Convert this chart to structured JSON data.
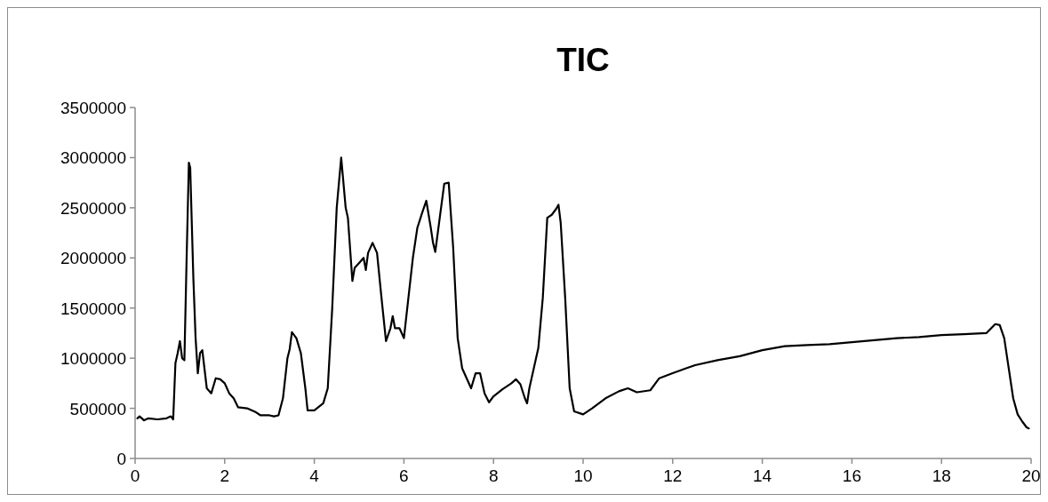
{
  "chart_data": {
    "type": "line",
    "title": "TIC",
    "x": [
      0.05,
      0.1,
      0.2,
      0.3,
      0.5,
      0.7,
      0.8,
      0.85,
      0.9,
      0.95,
      1.0,
      1.05,
      1.1,
      1.15,
      1.2,
      1.23,
      1.3,
      1.35,
      1.4,
      1.45,
      1.5,
      1.6,
      1.7,
      1.8,
      1.9,
      2.0,
      2.1,
      2.2,
      2.3,
      2.5,
      2.7,
      2.8,
      3.0,
      3.1,
      3.2,
      3.3,
      3.4,
      3.45,
      3.5,
      3.6,
      3.7,
      3.8,
      3.85,
      4.0,
      4.2,
      4.3,
      4.4,
      4.5,
      4.6,
      4.7,
      4.75,
      4.85,
      4.9,
      5.0,
      5.1,
      5.15,
      5.2,
      5.3,
      5.4,
      5.5,
      5.6,
      5.7,
      5.75,
      5.8,
      5.9,
      6.0,
      6.1,
      6.2,
      6.3,
      6.4,
      6.5,
      6.6,
      6.65,
      6.7,
      6.8,
      6.9,
      7.0,
      7.1,
      7.2,
      7.3,
      7.4,
      7.5,
      7.6,
      7.7,
      7.8,
      7.9,
      8.0,
      8.2,
      8.4,
      8.5,
      8.6,
      8.7,
      8.75,
      8.8,
      9.0,
      9.1,
      9.2,
      9.3,
      9.4,
      9.45,
      9.5,
      9.6,
      9.7,
      9.8,
      10.0,
      10.2,
      10.5,
      10.8,
      11.0,
      11.2,
      11.5,
      11.7,
      12.0,
      12.3,
      12.5,
      13.0,
      13.5,
      14.0,
      14.5,
      15.0,
      15.5,
      16.0,
      16.5,
      17.0,
      17.5,
      18.0,
      18.5,
      19.0,
      19.2,
      19.3,
      19.4,
      19.5,
      19.6,
      19.7,
      19.8,
      19.9,
      19.95
    ],
    "series": [
      {
        "color": "#000000",
        "values": [
          400000,
          420000,
          380000,
          400000,
          390000,
          400000,
          420000,
          390000,
          950000,
          1050000,
          1170000,
          1000000,
          980000,
          2000000,
          2950000,
          2900000,
          1800000,
          1200000,
          850000,
          1050000,
          1080000,
          700000,
          650000,
          800000,
          790000,
          750000,
          650000,
          600000,
          510000,
          500000,
          460000,
          430000,
          430000,
          420000,
          430000,
          600000,
          1000000,
          1090000,
          1260000,
          1200000,
          1050000,
          700000,
          480000,
          480000,
          550000,
          700000,
          1500000,
          2500000,
          3000000,
          2500000,
          2400000,
          1770000,
          1900000,
          1950000,
          2000000,
          1880000,
          2050000,
          2150000,
          2050000,
          1600000,
          1170000,
          1300000,
          1420000,
          1300000,
          1300000,
          1200000,
          1600000,
          2000000,
          2300000,
          2440000,
          2570000,
          2300000,
          2150000,
          2060000,
          2400000,
          2740000,
          2750000,
          2100000,
          1200000,
          900000,
          800000,
          700000,
          850000,
          850000,
          650000,
          560000,
          620000,
          690000,
          750000,
          790000,
          740000,
          600000,
          550000,
          700000,
          1100000,
          1600000,
          2400000,
          2430000,
          2490000,
          2530000,
          2350000,
          1600000,
          700000,
          470000,
          440000,
          500000,
          600000,
          670000,
          700000,
          660000,
          680000,
          800000,
          850000,
          900000,
          930000,
          980000,
          1020000,
          1080000,
          1120000,
          1130000,
          1140000,
          1160000,
          1180000,
          1200000,
          1210000,
          1230000,
          1240000,
          1250000,
          1340000,
          1330000,
          1200000,
          900000,
          600000,
          440000,
          370000,
          310000,
          300000
        ]
      }
    ],
    "xlim": [
      0,
      20
    ],
    "xticks": [
      0,
      2,
      4,
      6,
      8,
      10,
      12,
      14,
      16,
      18,
      20
    ],
    "ylim": [
      0,
      3500000
    ],
    "yticks": [
      0,
      500000,
      1000000,
      1500000,
      2000000,
      2500000,
      3000000,
      3500000
    ],
    "grid": false,
    "marker": "none",
    "line_style": "solid"
  }
}
